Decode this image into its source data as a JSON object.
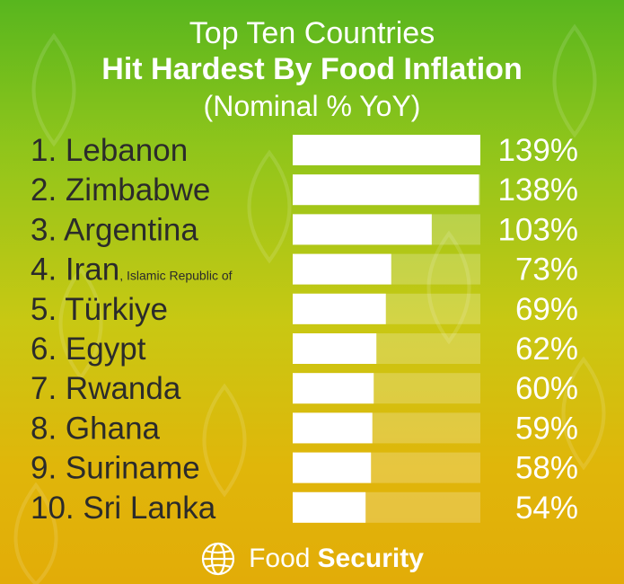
{
  "title": {
    "line1": "Top Ten Countries",
    "line2": "Hit Hardest By Food Inflation",
    "line3": "(Nominal % YoY)"
  },
  "footer": {
    "light": "Food",
    "bold": "Security",
    "icon": "globe-icon"
  },
  "colors": {
    "bar": "#ffffff",
    "text": "#2b2b2b",
    "label": "#ffffff"
  },
  "chart_data": {
    "type": "bar",
    "orientation": "horizontal",
    "ylim": [
      0,
      139
    ],
    "categories": [
      "1. Lebanon",
      "2. Zimbabwe",
      "3. Argentina",
      "4. Iran",
      "5. Türkiye",
      "6. Egypt",
      "7. Rwanda",
      "8. Ghana",
      "9. Suriname",
      "10. Sri Lanka"
    ],
    "notes": [
      "",
      "",
      "",
      "Islamic Republic of",
      "",
      "",
      "",
      "",
      "",
      ""
    ],
    "values": [
      139,
      138,
      103,
      73,
      69,
      62,
      60,
      59,
      58,
      54
    ],
    "value_labels": [
      "139%",
      "138%",
      "103%",
      "73%",
      "69%",
      "62%",
      "60%",
      "59%",
      "58%",
      "54%"
    ]
  }
}
